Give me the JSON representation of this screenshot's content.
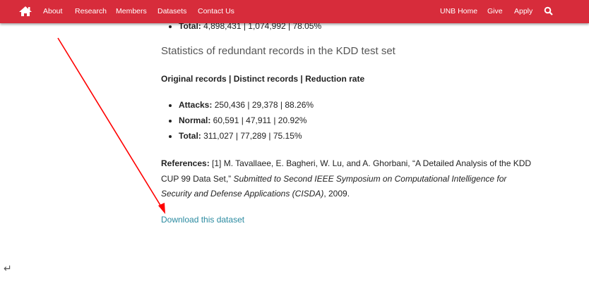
{
  "nav": {
    "left_items": [
      "About",
      "Research",
      "Members",
      "Datasets",
      "Contact Us"
    ],
    "right_items": [
      "UNB Home",
      "Give",
      "Apply"
    ],
    "color": "#d72c3b",
    "home_icon": "home-icon",
    "search_icon": "search-icon"
  },
  "content": {
    "prev_total_label": "Total:",
    "prev_total_value": " 4,898,431 | 1,074,992 | 78.05%",
    "section_title": "Statistics of redundant records in the KDD test set",
    "columns_header": "Original records | Distinct records | Reduction rate",
    "stats": [
      {
        "label": "Attacks:",
        "value": " 250,436 | 29,378 | 88.26%"
      },
      {
        "label": "Normal:",
        "value": " 60,591 | 47,911 | 20.92%"
      },
      {
        "label": "Total:",
        "value": " 311,027 | 77,289 | 75.15%"
      }
    ],
    "references_label": "References:",
    "references_text": " [1] M. Tavallaee, E. Bagheri, W. Lu, and A. Ghorbani, “A Detailed Analysis of the KDD CUP 99 Data Set,” ",
    "references_italic": "Submitted to Second IEEE Symposium on Computational Intelligence for Security and Defense Applications (CISDA)",
    "references_end": ", 2009.",
    "download_link": "Download this dataset",
    "link_color": "#2a8aa0"
  },
  "annotation": {
    "arrow_color": "#ff0000"
  },
  "return_symbol": "↵"
}
